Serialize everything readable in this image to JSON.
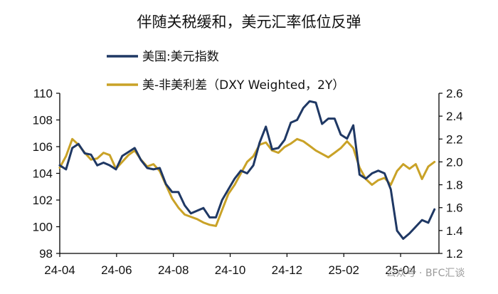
{
  "chart_data": {
    "type": "line",
    "title": "伴随关税缓和，美元汇率低位反弹",
    "x_tick_labels": [
      "24-04",
      "24-06",
      "24-08",
      "24-10",
      "24-12",
      "25-02",
      "25-04"
    ],
    "x_range": [
      "2024-04-01",
      "2025-05-31"
    ],
    "y_left": {
      "ylim": [
        98,
        110
      ],
      "ticks": [
        98,
        100,
        102,
        104,
        106,
        108,
        110
      ]
    },
    "y_right": {
      "ylim": [
        1.2,
        2.6
      ],
      "ticks": [
        "1.2",
        "1.4",
        "1.6",
        "1.8",
        "2.0",
        "2.2",
        "2.4",
        "2.6"
      ]
    },
    "legend_position": "top-left",
    "grid": false,
    "series": [
      {
        "name": "美国:美元指数",
        "axis": "left",
        "color": "#1f3864",
        "points": [
          [
            "2024-04-01",
            104.6
          ],
          [
            "2024-04-08",
            104.3
          ],
          [
            "2024-04-15",
            105.9
          ],
          [
            "2024-04-22",
            106.2
          ],
          [
            "2024-04-29",
            105.5
          ],
          [
            "2024-05-06",
            105.4
          ],
          [
            "2024-05-13",
            104.6
          ],
          [
            "2024-05-20",
            104.8
          ],
          [
            "2024-05-27",
            104.6
          ],
          [
            "2024-06-03",
            104.3
          ],
          [
            "2024-06-10",
            105.3
          ],
          [
            "2024-06-17",
            105.6
          ],
          [
            "2024-06-24",
            105.9
          ],
          [
            "2024-07-01",
            105.0
          ],
          [
            "2024-07-08",
            104.4
          ],
          [
            "2024-07-15",
            104.3
          ],
          [
            "2024-07-22",
            104.4
          ],
          [
            "2024-07-29",
            103.2
          ],
          [
            "2024-08-05",
            102.6
          ],
          [
            "2024-08-12",
            102.6
          ],
          [
            "2024-08-19",
            101.6
          ],
          [
            "2024-08-26",
            101.0
          ],
          [
            "2024-09-02",
            101.2
          ],
          [
            "2024-09-09",
            101.4
          ],
          [
            "2024-09-16",
            100.7
          ],
          [
            "2024-09-23",
            100.7
          ],
          [
            "2024-09-30",
            102.0
          ],
          [
            "2024-10-07",
            102.8
          ],
          [
            "2024-10-14",
            103.6
          ],
          [
            "2024-10-21",
            104.2
          ],
          [
            "2024-10-28",
            104.0
          ],
          [
            "2024-11-04",
            104.6
          ],
          [
            "2024-11-11",
            106.3
          ],
          [
            "2024-11-18",
            107.5
          ],
          [
            "2024-11-25",
            105.8
          ],
          [
            "2024-12-02",
            105.9
          ],
          [
            "2024-12-09",
            106.5
          ],
          [
            "2024-12-16",
            107.8
          ],
          [
            "2024-12-23",
            108.0
          ],
          [
            "2024-12-30",
            108.9
          ],
          [
            "2025-01-06",
            109.4
          ],
          [
            "2025-01-13",
            109.3
          ],
          [
            "2025-01-20",
            107.7
          ],
          [
            "2025-01-27",
            108.1
          ],
          [
            "2025-02-03",
            108.1
          ],
          [
            "2025-02-10",
            106.9
          ],
          [
            "2025-02-17",
            106.6
          ],
          [
            "2025-02-24",
            107.6
          ],
          [
            "2025-03-03",
            103.9
          ],
          [
            "2025-03-10",
            103.6
          ],
          [
            "2025-03-17",
            104.0
          ],
          [
            "2025-03-24",
            104.2
          ],
          [
            "2025-03-31",
            104.0
          ],
          [
            "2025-04-07",
            102.8
          ],
          [
            "2025-04-14",
            99.7
          ],
          [
            "2025-04-21",
            99.1
          ],
          [
            "2025-04-28",
            99.5
          ],
          [
            "2025-05-05",
            100.0
          ],
          [
            "2025-05-12",
            100.5
          ],
          [
            "2025-05-19",
            100.3
          ],
          [
            "2025-05-26",
            101.3
          ]
        ]
      },
      {
        "name": "美-非美利差（DXY Weighted，2Y）",
        "axis": "right",
        "color": "#c9a227",
        "points": [
          [
            "2024-04-01",
            1.95
          ],
          [
            "2024-04-08",
            2.05
          ],
          [
            "2024-04-15",
            2.2
          ],
          [
            "2024-04-22",
            2.15
          ],
          [
            "2024-04-29",
            2.08
          ],
          [
            "2024-05-06",
            2.02
          ],
          [
            "2024-05-13",
            2.03
          ],
          [
            "2024-05-20",
            2.08
          ],
          [
            "2024-05-27",
            2.06
          ],
          [
            "2024-06-03",
            1.94
          ],
          [
            "2024-06-10",
            2.0
          ],
          [
            "2024-06-17",
            2.06
          ],
          [
            "2024-06-24",
            2.1
          ],
          [
            "2024-07-01",
            2.02
          ],
          [
            "2024-07-08",
            1.96
          ],
          [
            "2024-07-15",
            1.98
          ],
          [
            "2024-07-22",
            1.92
          ],
          [
            "2024-07-29",
            1.8
          ],
          [
            "2024-08-05",
            1.68
          ],
          [
            "2024-08-12",
            1.6
          ],
          [
            "2024-08-19",
            1.54
          ],
          [
            "2024-08-26",
            1.52
          ],
          [
            "2024-09-02",
            1.5
          ],
          [
            "2024-09-09",
            1.47
          ],
          [
            "2024-09-16",
            1.45
          ],
          [
            "2024-09-23",
            1.44
          ],
          [
            "2024-09-30",
            1.58
          ],
          [
            "2024-10-07",
            1.72
          ],
          [
            "2024-10-14",
            1.8
          ],
          [
            "2024-10-21",
            1.9
          ],
          [
            "2024-10-28",
            2.0
          ],
          [
            "2024-11-04",
            2.05
          ],
          [
            "2024-11-11",
            2.15
          ],
          [
            "2024-11-18",
            2.17
          ],
          [
            "2024-11-25",
            2.1
          ],
          [
            "2024-12-02",
            2.08
          ],
          [
            "2024-12-09",
            2.13
          ],
          [
            "2024-12-16",
            2.16
          ],
          [
            "2024-12-23",
            2.2
          ],
          [
            "2024-12-30",
            2.18
          ],
          [
            "2025-01-06",
            2.14
          ],
          [
            "2025-01-13",
            2.1
          ],
          [
            "2025-01-20",
            2.07
          ],
          [
            "2025-01-27",
            2.04
          ],
          [
            "2025-02-03",
            2.08
          ],
          [
            "2025-02-10",
            2.12
          ],
          [
            "2025-02-17",
            2.18
          ],
          [
            "2025-02-24",
            2.12
          ],
          [
            "2025-03-03",
            1.95
          ],
          [
            "2025-03-10",
            1.85
          ],
          [
            "2025-03-17",
            1.8
          ],
          [
            "2025-03-24",
            1.84
          ],
          [
            "2025-03-31",
            1.86
          ],
          [
            "2025-04-07",
            1.8
          ],
          [
            "2025-04-14",
            1.92
          ],
          [
            "2025-04-21",
            1.98
          ],
          [
            "2025-04-28",
            1.94
          ],
          [
            "2025-05-05",
            1.98
          ],
          [
            "2025-05-12",
            1.85
          ],
          [
            "2025-05-19",
            1.96
          ],
          [
            "2025-05-26",
            2.0
          ]
        ]
      }
    ]
  },
  "watermark": "公众号 · BFC汇谈"
}
